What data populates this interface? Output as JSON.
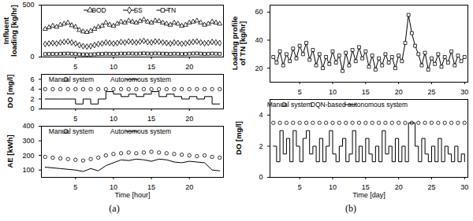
{
  "chart_data": [
    {
      "type": "line",
      "ylabel": "Influent loading [kg/hr]",
      "legend": "top",
      "x": [
        1,
        1.5,
        2,
        2.5,
        3,
        3.5,
        4,
        4.5,
        5,
        5.5,
        6,
        6.5,
        7,
        7.5,
        8,
        8.5,
        9,
        9.5,
        10,
        10.5,
        11,
        11.5,
        12,
        12.5,
        13,
        13.5,
        14,
        14.5,
        15,
        15.5,
        16,
        16.5,
        17,
        17.5,
        18,
        18.5,
        19,
        19.5,
        20,
        20.5,
        21,
        21.5,
        22,
        22.5,
        23,
        23.5,
        24
      ],
      "xlim": [
        0.5,
        24.5
      ],
      "xticks": [
        5,
        10,
        15,
        20
      ],
      "ylim": [
        0,
        500
      ],
      "yticks": [
        0,
        500
      ],
      "series": [
        {
          "name": "COD",
          "color": "#000000",
          "marker": "triangle",
          "line_style": "solid",
          "values": [
            270,
            285,
            300,
            290,
            310,
            320,
            330,
            305,
            290,
            260,
            245,
            240,
            250,
            270,
            290,
            300,
            330,
            310,
            300,
            320,
            340,
            330,
            350,
            340,
            330,
            345,
            360,
            340,
            330,
            350,
            345,
            330,
            320,
            310,
            330,
            320,
            300,
            310,
            330,
            340,
            350,
            330,
            310,
            320,
            340,
            330,
            320
          ]
        },
        {
          "name": "SS",
          "color": "#000000",
          "marker": "diamond",
          "line_style": "solid",
          "values": [
            125,
            130,
            135,
            130,
            140,
            145,
            150,
            140,
            130,
            115,
            105,
            100,
            105,
            115,
            125,
            130,
            140,
            135,
            130,
            135,
            145,
            140,
            150,
            145,
            140,
            148,
            155,
            145,
            140,
            150,
            148,
            140,
            135,
            130,
            140,
            135,
            128,
            132,
            140,
            145,
            150,
            140,
            132,
            136,
            145,
            140,
            135
          ]
        },
        {
          "name": "TN",
          "color": "#000000",
          "marker": "square",
          "line_style": "solid",
          "values": [
            28,
            29,
            30,
            29,
            31,
            32,
            33,
            31,
            30,
            27,
            25,
            24,
            25,
            27,
            29,
            30,
            32,
            31,
            30,
            31,
            33,
            32,
            34,
            33,
            32,
            33,
            35,
            33,
            32,
            34,
            33,
            32,
            31,
            30,
            32,
            31,
            29,
            30,
            32,
            33,
            34,
            32,
            30,
            31,
            33,
            32,
            31
          ]
        }
      ]
    },
    {
      "type": "line",
      "ylabel": "DO [mg/l]",
      "legend": "top",
      "x": [
        1,
        2,
        3,
        4,
        5,
        6,
        7,
        8,
        9,
        10,
        11,
        12,
        13,
        14,
        15,
        16,
        17,
        18,
        19,
        20,
        21,
        22,
        23,
        24
      ],
      "xlim": [
        0.5,
        24.5
      ],
      "xticks": [
        5,
        10,
        15,
        20
      ],
      "ylim": [
        0,
        7
      ],
      "yticks": [
        0,
        2,
        4,
        6
      ],
      "series": [
        {
          "name": "Manual system",
          "color": "#000000",
          "type": "scatter",
          "marker": "circle",
          "values": [
            4,
            4,
            4,
            4,
            4,
            4,
            4,
            4,
            4,
            4,
            4,
            4,
            4,
            4,
            4,
            4,
            4,
            4,
            4,
            4,
            4,
            4,
            4,
            4
          ]
        },
        {
          "name": "Autonomous system",
          "color": "#000000",
          "type": "step",
          "line_style": "solid",
          "values": [
            2,
            2,
            2,
            2,
            1,
            2,
            1,
            2,
            3.5,
            3,
            2.5,
            3,
            2.5,
            3,
            3.5,
            2.5,
            3,
            2.5,
            2,
            2.5,
            2,
            2.5,
            1,
            1
          ]
        }
      ]
    },
    {
      "type": "line",
      "ylabel": "AE [kWh]",
      "xlabel": "Time [hour]",
      "legend": "top",
      "caption": "(a)",
      "x": [
        1,
        2,
        3,
        4,
        5,
        6,
        7,
        8,
        9,
        10,
        11,
        12,
        13,
        14,
        15,
        16,
        17,
        18,
        19,
        20,
        21,
        22,
        23,
        24
      ],
      "xlim": [
        0.5,
        24.5
      ],
      "xticks": [
        5,
        10,
        15,
        20
      ],
      "ylim": [
        50,
        400
      ],
      "yticks": [
        100,
        200,
        300,
        400
      ],
      "series": [
        {
          "name": "Manual system",
          "color": "#000000",
          "type": "scatter",
          "marker": "circle",
          "values": [
            190,
            185,
            180,
            175,
            170,
            165,
            175,
            185,
            200,
            210,
            215,
            220,
            215,
            220,
            225,
            220,
            215,
            210,
            205,
            200,
            195,
            200,
            190,
            185
          ]
        },
        {
          "name": "Autonomous system",
          "color": "#000000",
          "type": "line",
          "line_style": "solid",
          "values": [
            120,
            115,
            110,
            105,
            100,
            90,
            110,
            95,
            130,
            150,
            170,
            165,
            175,
            170,
            160,
            175,
            170,
            155,
            150,
            160,
            155,
            150,
            100,
            95
          ]
        }
      ]
    },
    {
      "type": "line",
      "ylabel": "Loading profile of TN [kg/hr]",
      "x": [
        1,
        1.5,
        2,
        2.5,
        3,
        3.5,
        4,
        4.5,
        5,
        5.5,
        6,
        6.5,
        7,
        7.5,
        8,
        8.5,
        9,
        9.5,
        10,
        10.5,
        11,
        11.5,
        12,
        12.5,
        13,
        13.5,
        14,
        14.5,
        15,
        15.5,
        16,
        16.5,
        17,
        17.5,
        18,
        18.5,
        19,
        19.5,
        20,
        20.5,
        21,
        21.5,
        22,
        22.5,
        23,
        23.5,
        24,
        24.5,
        25,
        25.5,
        26,
        26.5,
        27,
        27.5,
        28,
        28.5,
        29,
        29.5,
        30
      ],
      "xlim": [
        0.5,
        30.5
      ],
      "xticks": [
        5,
        10,
        15,
        20,
        25,
        30
      ],
      "ylim": [
        10,
        65
      ],
      "yticks": [
        20,
        40,
        60
      ],
      "series": [
        {
          "color": "#000000",
          "marker": "square",
          "line_style": "solid",
          "values": [
            28,
            24,
            32,
            22,
            30,
            25,
            34,
            27,
            36,
            30,
            38,
            26,
            33,
            22,
            30,
            20,
            28,
            23,
            32,
            24,
            29,
            18,
            31,
            22,
            33,
            25,
            35,
            27,
            32,
            21,
            29,
            19,
            27,
            22,
            30,
            24,
            28,
            20,
            29,
            25,
            38,
            58,
            45,
            36,
            30,
            22,
            31,
            19,
            27,
            23,
            30,
            21,
            28,
            24,
            32,
            22,
            29,
            25,
            28
          ]
        }
      ]
    },
    {
      "type": "line",
      "ylabel": "DO [mg/l]",
      "xlabel": "Time [day]",
      "legend": "top",
      "caption": "(b)",
      "x": [
        1,
        1.5,
        2,
        2.5,
        3,
        3.5,
        4,
        4.5,
        5,
        5.5,
        6,
        6.5,
        7,
        7.5,
        8,
        8.5,
        9,
        9.5,
        10,
        10.5,
        11,
        11.5,
        12,
        12.5,
        13,
        13.5,
        14,
        14.5,
        15,
        15.5,
        16,
        16.5,
        17,
        17.5,
        18,
        18.5,
        19,
        19.5,
        20,
        20.5,
        21,
        21.5,
        22,
        22.5,
        23,
        23.5,
        24,
        24.5,
        25,
        25.5,
        26,
        26.5,
        27,
        27.5,
        28,
        28.5,
        29,
        29.5,
        30
      ],
      "xlim": [
        0.5,
        30.5
      ],
      "xticks": [
        5,
        10,
        15,
        20,
        25,
        30
      ],
      "ylim": [
        0,
        5
      ],
      "yticks": [
        0,
        2,
        4
      ],
      "series": [
        {
          "name": "Manual system",
          "color": "#000000",
          "type": "scatter",
          "marker": "circle",
          "values": [
            3.5,
            null,
            3.5,
            null,
            3.5,
            null,
            3.5,
            null,
            3.5,
            null,
            3.5,
            null,
            3.5,
            null,
            3.5,
            null,
            3.5,
            null,
            3.5,
            null,
            3.5,
            null,
            3.5,
            null,
            3.5,
            null,
            3.5,
            null,
            3.5,
            null,
            3.5,
            null,
            3.5,
            null,
            3.5,
            null,
            3.5,
            null,
            3.5,
            null,
            3.5,
            null,
            3.5,
            null,
            3.5,
            null,
            3.5,
            null,
            3.5,
            null,
            3.5,
            null,
            3.5,
            null,
            3.5,
            null,
            3.5,
            null,
            3.5
          ]
        },
        {
          "name": "DQN-based autonomous system",
          "color": "#000000",
          "type": "step",
          "line_style": "solid",
          "values": [
            2,
            1,
            3,
            1.5,
            2.5,
            1,
            3,
            2,
            1,
            2.5,
            3,
            1.5,
            2,
            1,
            2.5,
            1,
            2,
            3,
            1.5,
            1,
            2,
            2.5,
            1,
            1.5,
            3,
            1,
            2,
            1,
            2.5,
            1.5,
            1,
            2,
            1,
            3,
            1.5,
            2,
            1,
            2.5,
            1,
            2,
            1,
            3.5,
            3.5,
            2,
            1,
            2.5,
            1.5,
            1,
            2,
            1,
            2.5,
            1,
            2,
            1.5,
            1,
            2,
            1,
            1.5,
            1
          ]
        }
      ]
    }
  ]
}
